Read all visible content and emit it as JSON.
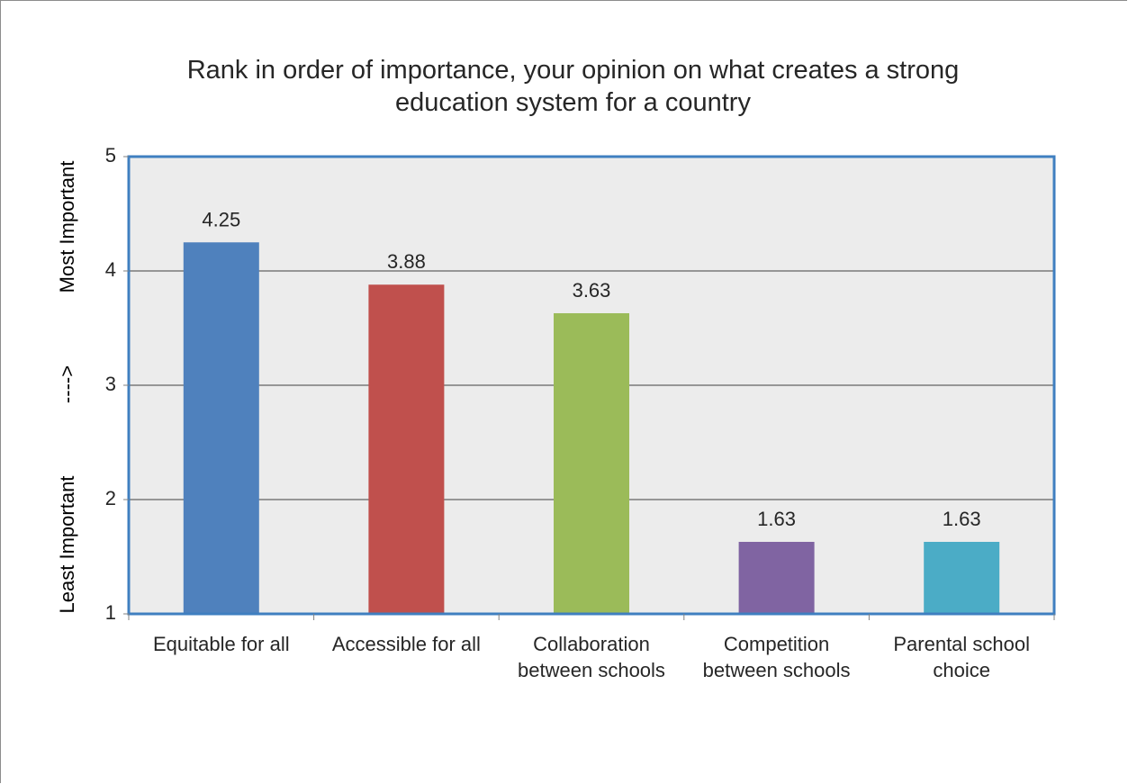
{
  "chart_data": {
    "type": "bar",
    "title": "Rank in order of importance, your opinion on what creates a strong education system for a country",
    "title_lines": [
      "Rank in order of importance, your opinion on what creates a strong",
      "education system for a country"
    ],
    "ylabel_low": "Least Important",
    "ylabel_arrow": "---->",
    "ylabel_high": "Most Important",
    "ylim": [
      1,
      5
    ],
    "yticks": [
      "1",
      "2",
      "3",
      "4",
      "5"
    ],
    "grid": true,
    "categories": [
      [
        "Equitable for all"
      ],
      [
        "Accessible for all"
      ],
      [
        "Collaboration",
        "between schools"
      ],
      [
        "Competition",
        "between schools"
      ],
      [
        "Parental school",
        "choice"
      ]
    ],
    "values": [
      4.25,
      3.88,
      3.63,
      1.63,
      1.63
    ],
    "data_labels": [
      "4.25",
      "3.88",
      "3.63",
      "1.63",
      "1.63"
    ],
    "colors": [
      "#4f81bd",
      "#c0504d",
      "#9bbb59",
      "#8064a2",
      "#4bacc6"
    ],
    "plot_background": "#ececec",
    "plot_border_color": "#3f7fc0",
    "gridline_color": "#404040"
  }
}
